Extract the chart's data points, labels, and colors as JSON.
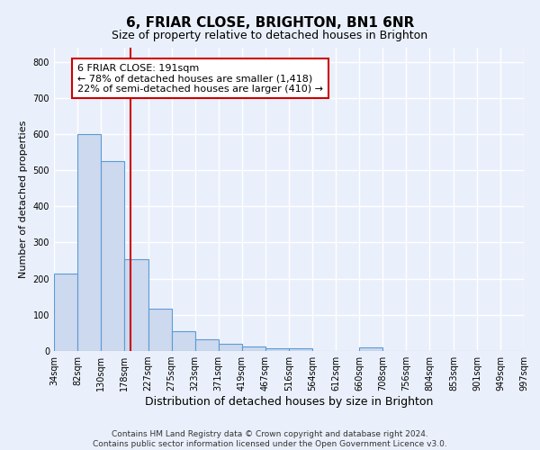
{
  "title": "6, FRIAR CLOSE, BRIGHTON, BN1 6NR",
  "subtitle": "Size of property relative to detached houses in Brighton",
  "xlabel": "Distribution of detached houses by size in Brighton",
  "ylabel": "Number of detached properties",
  "bin_edges": [
    34,
    82,
    130,
    178,
    227,
    275,
    323,
    371,
    419,
    467,
    516,
    564,
    612,
    660,
    708,
    756,
    804,
    853,
    901,
    949,
    997
  ],
  "bar_heights": [
    215,
    600,
    525,
    255,
    118,
    55,
    32,
    20,
    13,
    8,
    8,
    0,
    0,
    10,
    0,
    0,
    0,
    0,
    0,
    0
  ],
  "bar_color": "#cdd9ee",
  "bar_edge_color": "#5b9bd5",
  "red_line_x": 191,
  "annotation_text": "6 FRIAR CLOSE: 191sqm\n← 78% of detached houses are smaller (1,418)\n22% of semi-detached houses are larger (410) →",
  "annotation_box_color": "#ffffff",
  "annotation_box_edge": "#cc0000",
  "ylim": [
    0,
    840
  ],
  "yticks": [
    0,
    100,
    200,
    300,
    400,
    500,
    600,
    700,
    800
  ],
  "footer_text": "Contains HM Land Registry data © Crown copyright and database right 2024.\nContains public sector information licensed under the Open Government Licence v3.0.",
  "background_color": "#eaf0fb",
  "grid_color": "#ffffff",
  "title_fontsize": 11,
  "subtitle_fontsize": 9,
  "xlabel_fontsize": 9,
  "ylabel_fontsize": 8,
  "tick_fontsize": 7,
  "annotation_fontsize": 8,
  "footer_fontsize": 6.5
}
